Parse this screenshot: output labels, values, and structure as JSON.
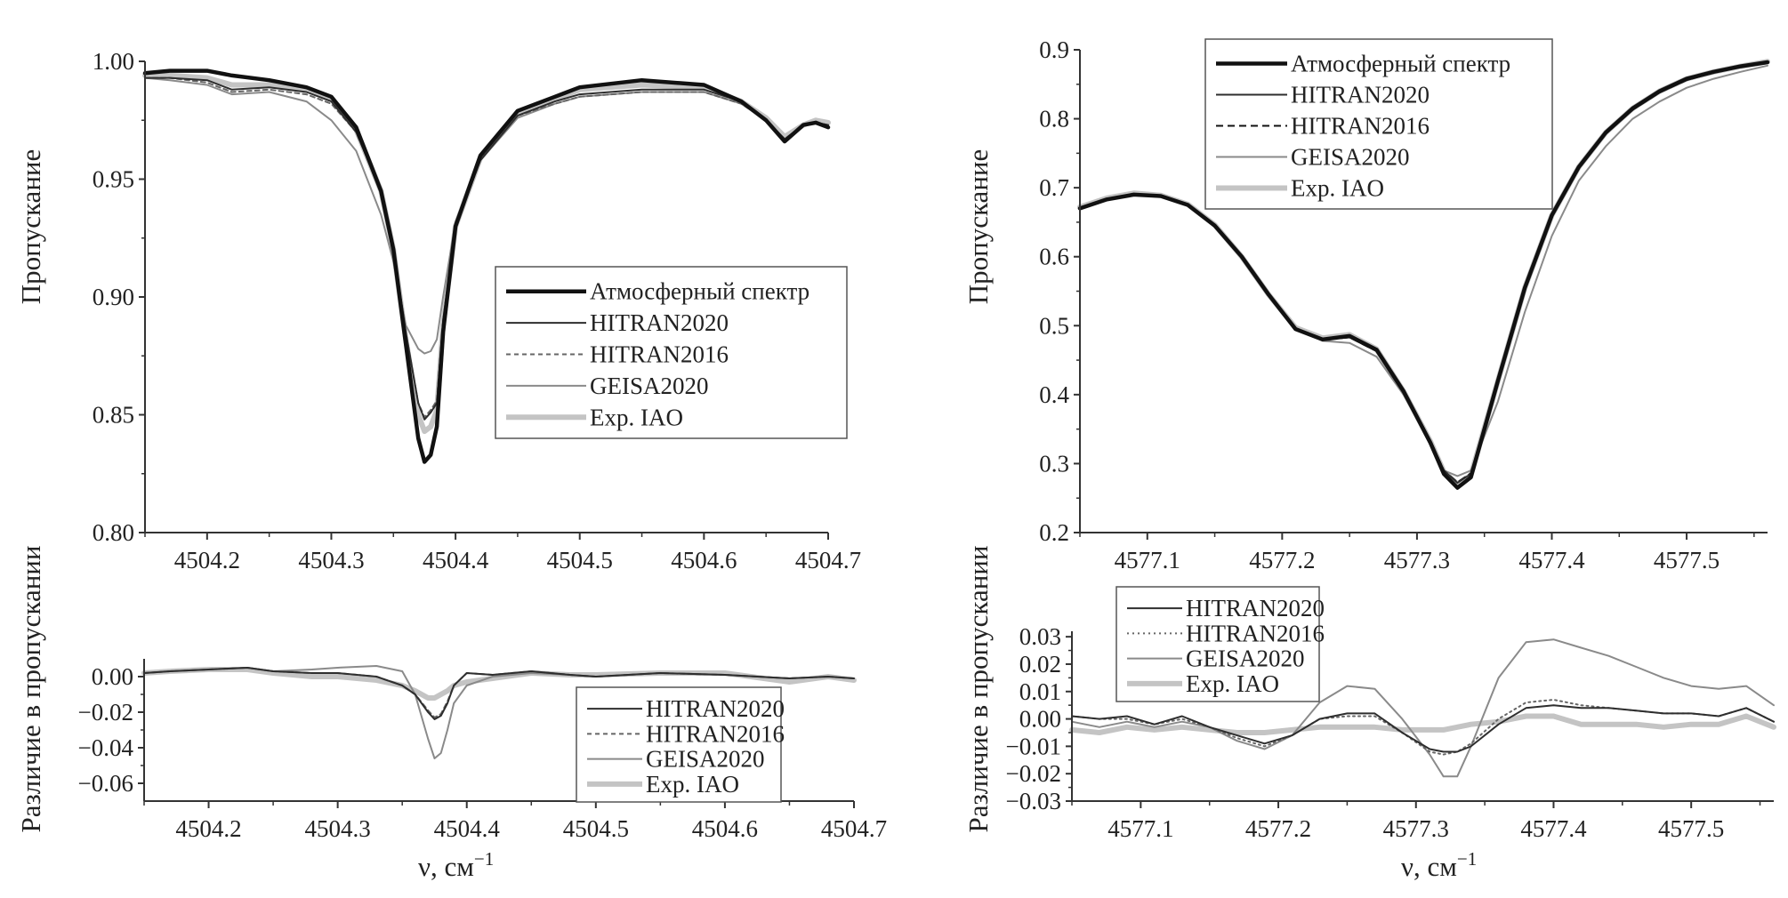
{
  "labels": {
    "y_top": "Пропускание",
    "y_bottom": "Различие в пропускании",
    "x": "ν, см",
    "x_sup": "−1"
  },
  "legend_names": [
    "Атмосферный спектр",
    "HITRAN2020",
    "HITRAN2016",
    "GEISA2020",
    "Exp. IAO"
  ],
  "colors": {
    "atmos": "#111111",
    "hitran2020": "#2e2e2e",
    "hitran2016": "#666666",
    "geisa": "#8a8a8a",
    "exp": "#c4c4c4",
    "axis": "#333333"
  },
  "chart_data": [
    {
      "id": "left-top",
      "type": "line",
      "xlabel": "ν, см−1",
      "ylabel": "Пропускание",
      "xlim": [
        4504.15,
        4504.7
      ],
      "ylim": [
        0.8,
        1.0
      ],
      "xticks": [
        4504.2,
        4504.3,
        4504.4,
        4504.5,
        4504.6,
        4504.7
      ],
      "yticks": [
        0.8,
        0.85,
        0.9,
        0.95,
        1.0
      ],
      "ydecimals": 2,
      "legend": "center-right",
      "x": [
        4504.15,
        4504.17,
        4504.2,
        4504.22,
        4504.25,
        4504.28,
        4504.3,
        4504.32,
        4504.34,
        4504.35,
        4504.36,
        4504.37,
        4504.375,
        4504.38,
        4504.385,
        4504.39,
        4504.4,
        4504.42,
        4504.45,
        4504.48,
        4504.5,
        4504.55,
        4504.6,
        4504.63,
        4504.65,
        4504.665,
        4504.68,
        4504.69,
        4504.7
      ],
      "series": [
        {
          "name": "Атмосферный спектр",
          "style": "atmos",
          "values": [
            0.995,
            0.996,
            0.996,
            0.994,
            0.992,
            0.989,
            0.985,
            0.972,
            0.945,
            0.92,
            0.88,
            0.84,
            0.83,
            0.833,
            0.845,
            0.885,
            0.93,
            0.96,
            0.979,
            0.985,
            0.989,
            0.992,
            0.99,
            0.983,
            0.975,
            0.966,
            0.973,
            0.974,
            0.972
          ]
        },
        {
          "name": "HITRAN2020",
          "style": "hitran2020",
          "values": [
            0.993,
            0.993,
            0.992,
            0.988,
            0.989,
            0.987,
            0.983,
            0.97,
            0.945,
            0.92,
            0.885,
            0.855,
            0.848,
            0.851,
            0.855,
            0.89,
            0.93,
            0.958,
            0.977,
            0.983,
            0.986,
            0.988,
            0.988,
            0.983,
            0.975,
            0.967,
            0.973,
            0.974,
            0.973
          ]
        },
        {
          "name": "HITRAN2016",
          "style": "hitran2016",
          "values": [
            0.993,
            0.993,
            0.991,
            0.987,
            0.988,
            0.986,
            0.982,
            0.97,
            0.945,
            0.92,
            0.885,
            0.855,
            0.849,
            0.852,
            0.856,
            0.89,
            0.93,
            0.958,
            0.977,
            0.982,
            0.985,
            0.987,
            0.987,
            0.982,
            0.975,
            0.967,
            0.973,
            0.974,
            0.973
          ]
        },
        {
          "name": "GEISA2020",
          "style": "geisa",
          "values": [
            0.993,
            0.992,
            0.99,
            0.986,
            0.987,
            0.983,
            0.975,
            0.962,
            0.935,
            0.915,
            0.888,
            0.878,
            0.876,
            0.877,
            0.882,
            0.9,
            0.932,
            0.958,
            0.976,
            0.982,
            0.985,
            0.987,
            0.987,
            0.982,
            0.975,
            0.967,
            0.973,
            0.974,
            0.973
          ]
        },
        {
          "name": "Exp. IAO",
          "style": "exp",
          "values": [
            0.994,
            0.994,
            0.993,
            0.99,
            0.99,
            0.988,
            0.984,
            0.971,
            0.945,
            0.92,
            0.882,
            0.85,
            0.843,
            0.845,
            0.852,
            0.888,
            0.93,
            0.959,
            0.978,
            0.984,
            0.988,
            0.99,
            0.989,
            0.983,
            0.976,
            0.968,
            0.973,
            0.975,
            0.974
          ]
        }
      ]
    },
    {
      "id": "left-bottom",
      "type": "line",
      "xlabel": "ν, см−1",
      "ylabel": "Различие в пропускании",
      "xlim": [
        4504.15,
        4504.7
      ],
      "ylim": [
        -0.07,
        0.01
      ],
      "xticks": [
        4504.2,
        4504.3,
        4504.4,
        4504.5,
        4504.6,
        4504.7
      ],
      "yticks": [
        -0.06,
        -0.04,
        -0.02,
        0.0
      ],
      "ydecimals": 2,
      "legend": "lower-right",
      "x": [
        4504.15,
        4504.17,
        4504.2,
        4504.23,
        4504.25,
        4504.28,
        4504.3,
        4504.33,
        4504.35,
        4504.36,
        4504.37,
        4504.375,
        4504.38,
        4504.385,
        4504.39,
        4504.4,
        4504.42,
        4504.45,
        4504.48,
        4504.5,
        4504.55,
        4504.6,
        4504.65,
        4504.68,
        4504.7
      ],
      "series": [
        {
          "name": "HITRAN2020",
          "style": "hitran2020",
          "values": [
            0.002,
            0.003,
            0.004,
            0.005,
            0.003,
            0.002,
            0.002,
            0.0,
            -0.005,
            -0.01,
            -0.02,
            -0.024,
            -0.022,
            -0.015,
            -0.005,
            0.002,
            0.001,
            0.003,
            0.001,
            0.0,
            0.002,
            0.001,
            -0.001,
            0.0,
            -0.001
          ]
        },
        {
          "name": "HITRAN2016",
          "style": "hitran2016",
          "values": [
            0.002,
            0.003,
            0.004,
            0.005,
            0.003,
            0.002,
            0.002,
            0.0,
            -0.005,
            -0.01,
            -0.019,
            -0.023,
            -0.021,
            -0.014,
            -0.005,
            0.002,
            0.001,
            0.003,
            0.001,
            0.0,
            0.002,
            0.001,
            -0.001,
            0.0,
            -0.001
          ]
        },
        {
          "name": "GEISA2020",
          "style": "geisa",
          "values": [
            0.002,
            0.003,
            0.004,
            0.005,
            0.003,
            0.004,
            0.005,
            0.006,
            0.003,
            -0.01,
            -0.035,
            -0.046,
            -0.043,
            -0.03,
            -0.015,
            -0.005,
            0.0,
            0.002,
            0.001,
            0.0,
            0.002,
            0.001,
            -0.001,
            0.0,
            -0.001
          ]
        },
        {
          "name": "Exp. IAO",
          "style": "exp",
          "values": [
            0.002,
            0.003,
            0.004,
            0.004,
            0.002,
            0.0,
            0.0,
            -0.002,
            -0.005,
            -0.008,
            -0.012,
            -0.012,
            -0.01,
            -0.008,
            -0.005,
            -0.003,
            -0.001,
            0.002,
            0.001,
            0.001,
            0.002,
            0.002,
            -0.003,
            0.0,
            -0.002
          ]
        }
      ]
    },
    {
      "id": "right-top",
      "type": "line",
      "xlabel": "ν, см−1",
      "ylabel": "Пропускание",
      "xlim": [
        4577.05,
        4577.56
      ],
      "ylim": [
        0.2,
        0.9
      ],
      "xticks": [
        4577.1,
        4577.2,
        4577.3,
        4577.4,
        4577.5
      ],
      "yticks": [
        0.2,
        0.3,
        0.4,
        0.5,
        0.6,
        0.7,
        0.8,
        0.9
      ],
      "ydecimals": 1,
      "legend": "top-center",
      "x": [
        4577.05,
        4577.07,
        4577.09,
        4577.11,
        4577.13,
        4577.15,
        4577.17,
        4577.19,
        4577.21,
        4577.23,
        4577.25,
        4577.27,
        4577.29,
        4577.31,
        4577.32,
        4577.33,
        4577.34,
        4577.36,
        4577.38,
        4577.4,
        4577.42,
        4577.44,
        4577.46,
        4577.48,
        4577.5,
        4577.52,
        4577.54,
        4577.56
      ],
      "series": [
        {
          "name": "Атмосферный спектр",
          "style": "atmos",
          "values": [
            0.67,
            0.683,
            0.69,
            0.688,
            0.675,
            0.645,
            0.6,
            0.545,
            0.495,
            0.48,
            0.485,
            0.465,
            0.405,
            0.33,
            0.285,
            0.265,
            0.28,
            0.42,
            0.555,
            0.66,
            0.73,
            0.78,
            0.815,
            0.84,
            0.858,
            0.868,
            0.876,
            0.882
          ]
        },
        {
          "name": "HITRAN2020",
          "style": "hitran2020",
          "values": [
            0.67,
            0.683,
            0.69,
            0.688,
            0.675,
            0.645,
            0.6,
            0.545,
            0.495,
            0.48,
            0.483,
            0.463,
            0.405,
            0.333,
            0.29,
            0.272,
            0.285,
            0.42,
            0.553,
            0.658,
            0.728,
            0.778,
            0.813,
            0.838,
            0.856,
            0.867,
            0.875,
            0.881
          ]
        },
        {
          "name": "HITRAN2016",
          "style": "hitran2016",
          "values": [
            0.67,
            0.683,
            0.69,
            0.688,
            0.675,
            0.645,
            0.6,
            0.545,
            0.495,
            0.48,
            0.483,
            0.463,
            0.405,
            0.333,
            0.29,
            0.273,
            0.286,
            0.42,
            0.553,
            0.658,
            0.728,
            0.778,
            0.813,
            0.838,
            0.856,
            0.867,
            0.875,
            0.881
          ]
        },
        {
          "name": "GEISA2020",
          "style": "geisa",
          "values": [
            0.67,
            0.683,
            0.69,
            0.688,
            0.675,
            0.645,
            0.6,
            0.545,
            0.497,
            0.478,
            0.475,
            0.455,
            0.4,
            0.33,
            0.29,
            0.282,
            0.29,
            0.39,
            0.52,
            0.63,
            0.71,
            0.76,
            0.8,
            0.825,
            0.845,
            0.858,
            0.868,
            0.877
          ]
        },
        {
          "name": "Exp. IAO",
          "style": "exp",
          "values": [
            0.672,
            0.685,
            0.692,
            0.689,
            0.676,
            0.646,
            0.6,
            0.545,
            0.497,
            0.482,
            0.487,
            0.466,
            0.405,
            0.332,
            0.288,
            0.27,
            0.283,
            0.42,
            0.555,
            0.66,
            0.73,
            0.78,
            0.815,
            0.84,
            0.858,
            0.868,
            0.876,
            0.883
          ]
        }
      ]
    },
    {
      "id": "right-bottom",
      "type": "line",
      "xlabel": "ν, см−1",
      "ylabel": "Различие в пропускании",
      "xlim": [
        4577.05,
        4577.56
      ],
      "ylim": [
        -0.03,
        0.032
      ],
      "xticks": [
        4577.1,
        4577.2,
        4577.3,
        4577.4,
        4577.5
      ],
      "yticks": [
        -0.03,
        -0.02,
        -0.01,
        0.0,
        0.01,
        0.02,
        0.03
      ],
      "ydecimals": 2,
      "legend": "top-left",
      "x": [
        4577.05,
        4577.07,
        4577.09,
        4577.11,
        4577.13,
        4577.15,
        4577.17,
        4577.19,
        4577.21,
        4577.23,
        4577.25,
        4577.27,
        4577.29,
        4577.31,
        4577.32,
        4577.33,
        4577.34,
        4577.36,
        4577.38,
        4577.4,
        4577.42,
        4577.44,
        4577.46,
        4577.48,
        4577.5,
        4577.52,
        4577.54,
        4577.56
      ],
      "series": [
        {
          "name": "HITRAN2020",
          "style": "hitran2020",
          "values": [
            0.001,
            0.0,
            0.001,
            -0.002,
            0.001,
            -0.003,
            -0.006,
            -0.009,
            -0.006,
            0.0,
            0.002,
            0.002,
            -0.005,
            -0.011,
            -0.012,
            -0.012,
            -0.01,
            -0.002,
            0.004,
            0.005,
            0.004,
            0.004,
            0.003,
            0.002,
            0.002,
            0.001,
            0.004,
            -0.001
          ]
        },
        {
          "name": "HITRAN2016",
          "style": "hitran2016",
          "values": [
            0.001,
            0.0,
            0.0,
            -0.002,
            0.0,
            -0.003,
            -0.007,
            -0.01,
            -0.006,
            0.0,
            0.001,
            0.001,
            -0.005,
            -0.012,
            -0.013,
            -0.012,
            -0.009,
            0.0,
            0.006,
            0.007,
            0.005,
            0.004,
            0.003,
            0.002,
            0.002,
            0.001,
            0.004,
            -0.001
          ]
        },
        {
          "name": "GEISA2020",
          "style": "geisa",
          "values": [
            -0.001,
            -0.003,
            -0.001,
            -0.003,
            -0.001,
            -0.003,
            -0.008,
            -0.011,
            -0.006,
            0.006,
            0.012,
            0.011,
            0.0,
            -0.013,
            -0.021,
            -0.021,
            -0.01,
            0.015,
            0.028,
            0.029,
            0.026,
            0.023,
            0.019,
            0.015,
            0.012,
            0.011,
            0.012,
            0.005
          ]
        },
        {
          "name": "Exp. IAO",
          "style": "exp",
          "values": [
            -0.004,
            -0.005,
            -0.003,
            -0.004,
            -0.003,
            -0.004,
            -0.005,
            -0.005,
            -0.004,
            -0.003,
            -0.003,
            -0.003,
            -0.004,
            -0.004,
            -0.004,
            -0.003,
            -0.002,
            -0.001,
            0.001,
            0.001,
            -0.002,
            -0.002,
            -0.002,
            -0.003,
            -0.002,
            -0.002,
            0.001,
            -0.003
          ]
        }
      ]
    }
  ]
}
